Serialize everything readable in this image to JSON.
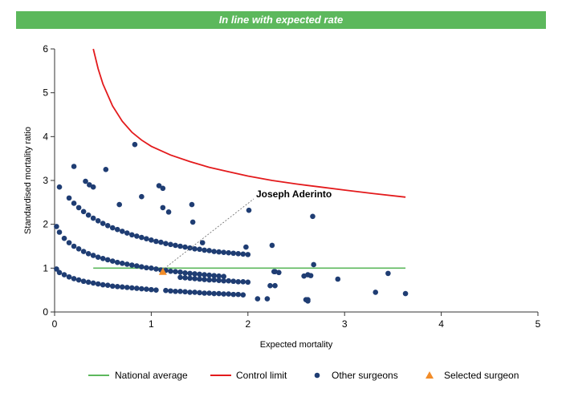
{
  "banner": {
    "title": "In line with expected rate"
  },
  "colors": {
    "banner_bg": "#5cb85c",
    "national_average": "#5cb85c",
    "control_limit": "#e31a1c",
    "other_surgeons": "#1f3d73",
    "selected_surgeon": "#f28c28",
    "axis": "#333333"
  },
  "chart_data": {
    "type": "scatter",
    "xlabel": "Expected mortality",
    "ylabel": "Standardised mortality ratio",
    "xlim": [
      0,
      5
    ],
    "ylim": [
      0,
      6
    ],
    "xticks": [
      "0",
      "1",
      "2",
      "3",
      "4",
      "5"
    ],
    "yticks": [
      "0",
      "1",
      "2",
      "3",
      "4",
      "5",
      "6"
    ],
    "grid": false,
    "legend_position": "bottom",
    "national_average": {
      "name": "National average",
      "y": 1,
      "x_range": [
        0.4,
        3.63
      ]
    },
    "control_limit": {
      "name": "Control limit",
      "points": [
        [
          0.4,
          6.0
        ],
        [
          0.45,
          5.55
        ],
        [
          0.5,
          5.2
        ],
        [
          0.6,
          4.7
        ],
        [
          0.7,
          4.35
        ],
        [
          0.8,
          4.1
        ],
        [
          0.9,
          3.92
        ],
        [
          1.0,
          3.78
        ],
        [
          1.2,
          3.58
        ],
        [
          1.4,
          3.43
        ],
        [
          1.6,
          3.3
        ],
        [
          1.8,
          3.2
        ],
        [
          2.0,
          3.1
        ],
        [
          2.25,
          3.0
        ],
        [
          2.5,
          2.92
        ],
        [
          2.75,
          2.85
        ],
        [
          3.0,
          2.78
        ],
        [
          3.3,
          2.7
        ],
        [
          3.63,
          2.62
        ]
      ]
    },
    "other_surgeons": {
      "name": "Other surgeons",
      "x": [
        0.02,
        0.05,
        0.1,
        0.15,
        0.2,
        0.25,
        0.3,
        0.35,
        0.4,
        0.45,
        0.5,
        0.55,
        0.6,
        0.65,
        0.7,
        0.75,
        0.8,
        0.85,
        0.9,
        0.95,
        1.0,
        1.05,
        1.15,
        1.2,
        1.25,
        1.3,
        1.35,
        1.4,
        1.45,
        1.5,
        1.55,
        1.6,
        1.65,
        1.7,
        1.75,
        1.8,
        1.85,
        1.9,
        1.95,
        0.02,
        0.05,
        0.1,
        0.15,
        0.2,
        0.25,
        0.3,
        0.35,
        0.4,
        0.45,
        0.5,
        0.55,
        0.6,
        0.65,
        0.7,
        0.75,
        0.8,
        0.85,
        0.9,
        0.95,
        1.0,
        1.05,
        1.1,
        1.15,
        1.2,
        1.25,
        1.3,
        1.35,
        1.4,
        1.45,
        1.5,
        1.55,
        1.6,
        1.65,
        1.7,
        1.75,
        0.15,
        0.2,
        0.25,
        0.3,
        0.35,
        0.4,
        0.45,
        0.5,
        0.55,
        0.6,
        0.65,
        0.7,
        0.75,
        0.8,
        0.85,
        0.9,
        0.95,
        1.0,
        1.05,
        1.1,
        1.15,
        1.2,
        1.25,
        1.3,
        1.35,
        1.4,
        1.45,
        1.5,
        1.55,
        1.6,
        1.65,
        1.7,
        1.75,
        1.8,
        1.85,
        1.9,
        1.95,
        2.0,
        1.3,
        1.35,
        1.4,
        1.45,
        1.5,
        1.55,
        1.6,
        1.65,
        1.7,
        1.75,
        1.8,
        1.85,
        1.9,
        1.95,
        2.0,
        0.05,
        0.2,
        0.32,
        0.36,
        0.4,
        0.53,
        0.67,
        0.83,
        0.9,
        1.08,
        1.12,
        1.12,
        1.18,
        1.42,
        1.43,
        1.53,
        1.98,
        2.01,
        2.25,
        2.27,
        2.62,
        2.67,
        2.68,
        2.93,
        3.32,
        3.45,
        3.63,
        2.23,
        2.28,
        2.28,
        2.32,
        2.6,
        2.62,
        2.58,
        2.62,
        2.65,
        2.1,
        2.2
      ],
      "y": [
        0.98,
        0.9,
        0.85,
        0.8,
        0.76,
        0.73,
        0.7,
        0.68,
        0.66,
        0.64,
        0.62,
        0.61,
        0.59,
        0.58,
        0.57,
        0.56,
        0.55,
        0.54,
        0.53,
        0.52,
        0.51,
        0.5,
        0.49,
        0.48,
        0.47,
        0.47,
        0.46,
        0.45,
        0.45,
        0.44,
        0.43,
        0.43,
        0.42,
        0.42,
        0.41,
        0.41,
        0.4,
        0.4,
        0.39,
        1.95,
        1.82,
        1.68,
        1.58,
        1.5,
        1.44,
        1.38,
        1.33,
        1.29,
        1.25,
        1.22,
        1.19,
        1.16,
        1.13,
        1.11,
        1.09,
        1.07,
        1.05,
        1.03,
        1.01,
        1.0,
        0.98,
        0.96,
        0.95,
        0.93,
        0.92,
        0.91,
        0.89,
        0.88,
        0.87,
        0.86,
        0.85,
        0.84,
        0.83,
        0.82,
        0.81,
        2.6,
        2.48,
        2.38,
        2.29,
        2.21,
        2.14,
        2.08,
        2.02,
        1.97,
        1.92,
        1.88,
        1.84,
        1.8,
        1.76,
        1.73,
        1.7,
        1.67,
        1.64,
        1.61,
        1.59,
        1.56,
        1.54,
        1.52,
        1.5,
        1.48,
        1.46,
        1.44,
        1.43,
        1.41,
        1.4,
        1.38,
        1.37,
        1.36,
        1.35,
        1.34,
        1.33,
        1.32,
        1.31,
        0.79,
        0.78,
        0.77,
        0.76,
        0.75,
        0.74,
        0.73,
        0.73,
        0.72,
        0.71,
        0.71,
        0.7,
        0.69,
        0.69,
        0.68,
        2.85,
        3.32,
        2.98,
        2.9,
        2.85,
        3.25,
        2.45,
        3.82,
        2.63,
        2.88,
        2.38,
        2.82,
        2.28,
        2.45,
        2.05,
        1.58,
        1.48,
        2.32,
        1.52,
        0.92,
        0.85,
        2.18,
        1.08,
        0.75,
        0.45,
        0.88,
        0.42,
        0.6,
        0.6,
        0.92,
        0.9,
        0.28,
        0.25,
        0.82,
        0.28,
        0.83,
        0.3,
        0.3
      ]
    },
    "selected_surgeon": {
      "name": "Selected surgeon",
      "x": 1.12,
      "y": 0.92,
      "label": "Joseph Aderinto"
    }
  }
}
